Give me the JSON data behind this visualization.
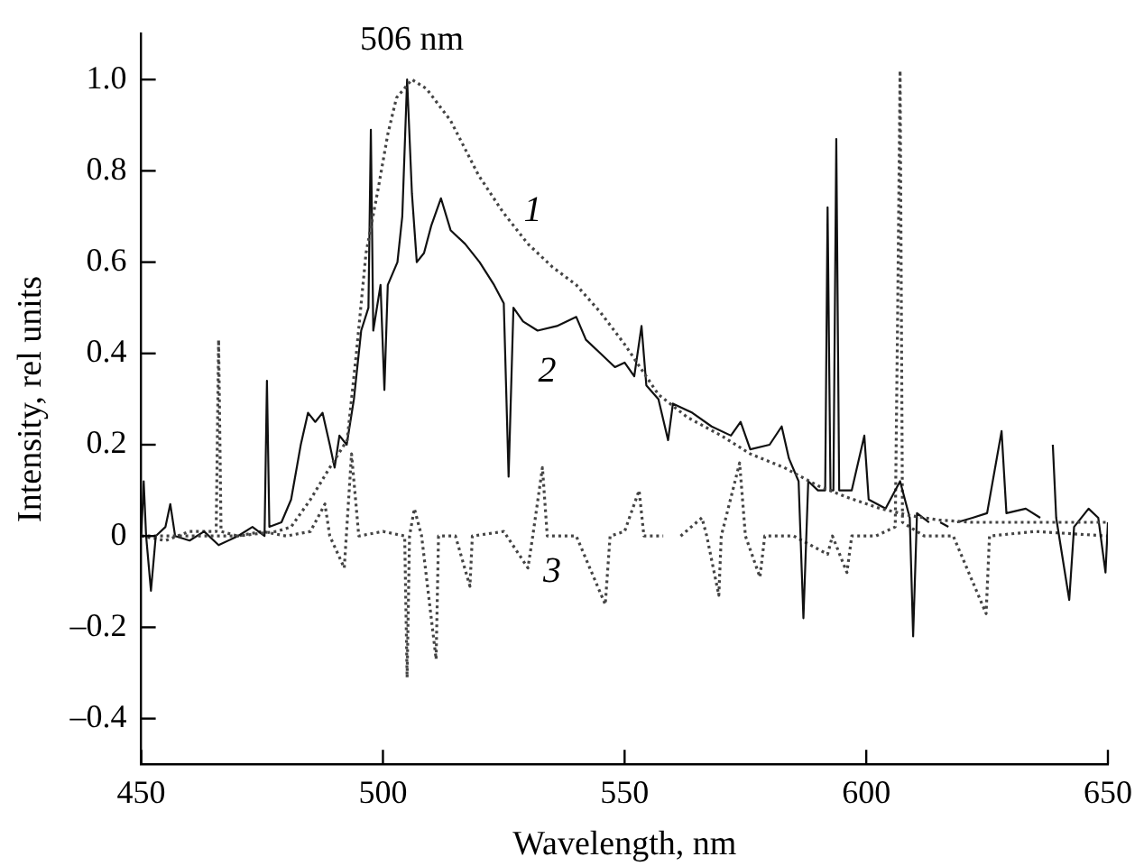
{
  "chart_data": {
    "type": "line",
    "xlabel": "Wavelength, nm",
    "ylabel": "Intensity, rel units",
    "xlim": [
      450,
      650
    ],
    "xticks": [
      450,
      500,
      550,
      600,
      650
    ],
    "ylim": [
      -0.5,
      1.1
    ],
    "yticks": [
      {
        "value": -0.4,
        "label": "–0.4"
      },
      {
        "value": -0.2,
        "label": "–0.2"
      },
      0,
      0.2,
      0.4,
      0.6,
      0.8,
      {
        "value": 1.0,
        "label": "1.0"
      }
    ],
    "marker": "none",
    "legend": false,
    "annotations": [
      {
        "text": "506 nm",
        "x": 506,
        "y": 1.0
      }
    ],
    "series": [
      {
        "name": "1",
        "color": "#444444",
        "line_style": "dotted",
        "x": [
          450,
          460,
          470,
          478,
          481,
          485,
          489,
          492.6,
          494.5,
          496.5,
          499,
          501,
          502.8,
          506,
          509,
          514,
          519.8,
          524.8,
          530,
          535,
          540,
          545,
          550,
          557,
          563,
          570,
          576,
          583,
          590,
          596,
          603,
          609,
          615,
          622,
          635,
          650
        ],
        "values": [
          0.0,
          0.0,
          0.0,
          0.01,
          0.02,
          0.08,
          0.15,
          0.21,
          0.4,
          0.62,
          0.76,
          0.88,
          0.96,
          1.0,
          0.98,
          0.91,
          0.79,
          0.71,
          0.64,
          0.59,
          0.55,
          0.49,
          0.42,
          0.31,
          0.26,
          0.22,
          0.18,
          0.15,
          0.11,
          0.085,
          0.06,
          0.045,
          0.035,
          0.03,
          0.03,
          0.03
        ]
      },
      {
        "name": "2",
        "color": "#111111",
        "line_style": "solid",
        "x": [
          450,
          450.5,
          451,
          452,
          453,
          455,
          456,
          457,
          460,
          463,
          466,
          470,
          473,
          475.5,
          476,
          476.5,
          479,
          481,
          483,
          484.5,
          486,
          487.5,
          489,
          490,
          491,
          492.5,
          494,
          495.5,
          497,
          497.5,
          498,
          499.5,
          500.3,
          501,
          503,
          504,
          505,
          506,
          507,
          508.5,
          510,
          512,
          514,
          517,
          520,
          523,
          525,
          526,
          527,
          529,
          532,
          536,
          540,
          542,
          545,
          548,
          550,
          552,
          553.5,
          554.5,
          557,
          559,
          560,
          564,
          568,
          572,
          574,
          576,
          580,
          582.5,
          584,
          586,
          587,
          588,
          590,
          591.5,
          592,
          592.6,
          593.2,
          593.8,
          594.4,
          597,
          599.6,
          600.5,
          604,
          607,
          609,
          609.7,
          610.5,
          613,
          614,
          614.6,
          615.3,
          617,
          618,
          618.8,
          622,
          625,
          628,
          629,
          633,
          636,
          638,
          638.6,
          639.3,
          642,
          643,
          646,
          648,
          649.5,
          650
        ],
        "values": [
          0.0,
          0.12,
          0.0,
          -0.12,
          0.0,
          0.02,
          0.07,
          0.0,
          -0.01,
          0.01,
          -0.02,
          0.0,
          0.02,
          0.0,
          0.34,
          0.02,
          0.03,
          0.08,
          0.2,
          0.27,
          0.25,
          0.27,
          0.2,
          0.15,
          0.22,
          0.2,
          0.3,
          0.45,
          0.5,
          0.89,
          0.45,
          0.55,
          0.32,
          0.55,
          0.6,
          0.7,
          1.0,
          0.75,
          0.6,
          0.62,
          0.68,
          0.74,
          0.67,
          0.64,
          0.6,
          0.55,
          0.51,
          0.13,
          0.5,
          0.47,
          0.45,
          0.46,
          0.48,
          0.43,
          0.4,
          0.37,
          0.38,
          0.35,
          0.46,
          0.33,
          0.3,
          0.21,
          0.29,
          0.27,
          0.24,
          0.22,
          0.25,
          0.19,
          0.2,
          0.24,
          0.17,
          0.12,
          -0.18,
          0.12,
          0.1,
          0.1,
          0.72,
          0.1,
          0.1,
          0.87,
          0.1,
          0.1,
          0.22,
          0.08,
          0.06,
          0.12,
          0.04,
          -0.22,
          0.05,
          0.03,
          null,
          null,
          0.03,
          0.02,
          null,
          0.03,
          0.04,
          0.05,
          0.23,
          0.05,
          0.06,
          0.04,
          null,
          0.2,
          0.04,
          -0.14,
          0.02,
          0.06,
          0.04,
          -0.08,
          0.03
        ]
      },
      {
        "name": "3",
        "color": "#444444",
        "line_style": "dotted",
        "x": [
          450,
          455,
          460,
          465.5,
          466,
          466.5,
          470,
          475,
          480,
          485,
          488,
          489,
          492,
          493.5,
          495,
          500,
          504.5,
          505,
          505.5,
          506.5,
          508,
          511,
          511.5,
          515,
          518,
          518.5,
          525,
          530,
          531,
          533,
          534,
          540,
          546,
          547,
          550,
          553,
          554,
          558,
          561,
          561.6,
          566,
          567,
          569.5,
          570,
          573.8,
          575,
          578,
          579,
          585,
          592,
          593,
          596,
          597,
          602,
          606,
          606.5,
          607,
          607.5,
          612,
          618,
          624.8,
          625.5,
          635,
          650
        ],
        "values": [
          0.0,
          -0.01,
          0.01,
          0.01,
          0.43,
          0.01,
          0.0,
          0.01,
          0.0,
          0.01,
          0.07,
          0.0,
          -0.07,
          0.18,
          0.0,
          0.01,
          0.0,
          -0.31,
          0.0,
          0.06,
          0.0,
          -0.27,
          0.0,
          0.0,
          -0.11,
          0.0,
          0.01,
          -0.07,
          0.0,
          0.15,
          0.0,
          0.0,
          -0.15,
          0.0,
          0.01,
          0.1,
          0.0,
          0.0,
          null,
          0.0,
          0.04,
          0.0,
          -0.13,
          0.0,
          0.16,
          0.0,
          -0.09,
          0.0,
          0.0,
          -0.04,
          0.0,
          -0.08,
          0.0,
          0.0,
          0.02,
          0.49,
          1.02,
          0.03,
          0.0,
          0.0,
          -0.17,
          0.0,
          0.01,
          0.0
        ]
      }
    ]
  }
}
